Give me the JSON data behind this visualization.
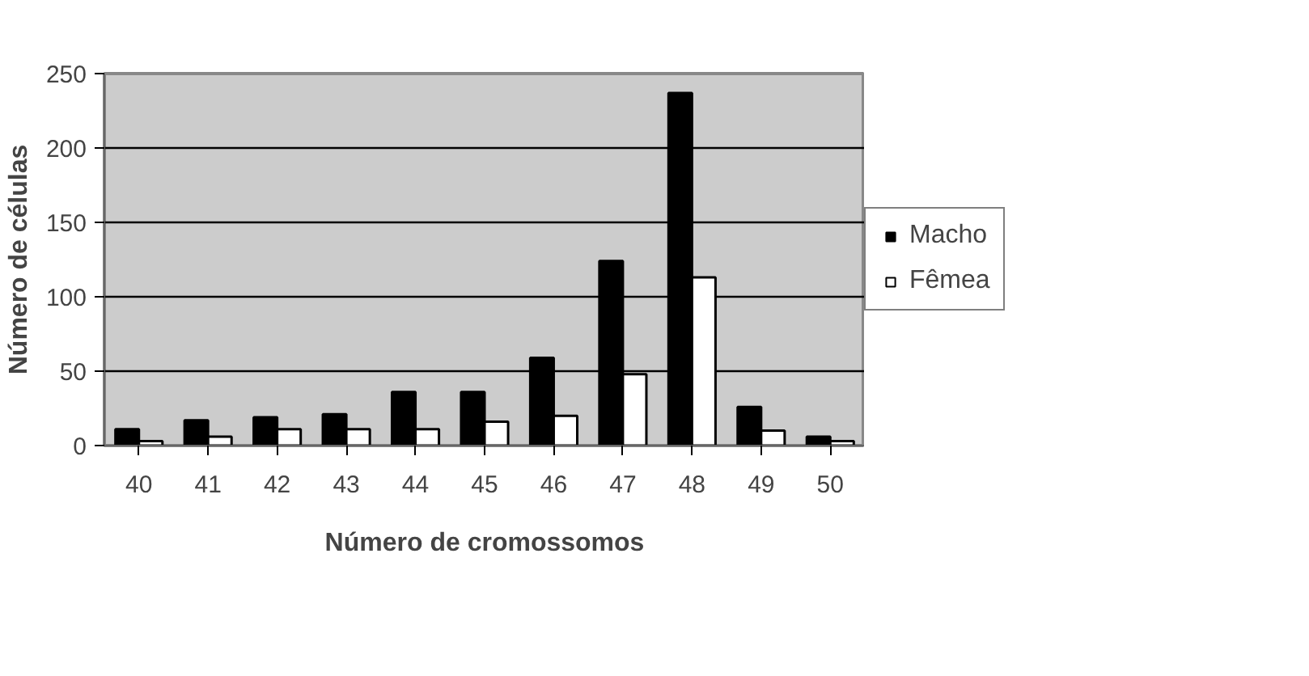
{
  "chart_data": {
    "type": "bar",
    "xlabel": "Número de cromossomos",
    "ylabel": "Número de células",
    "categories": [
      "40",
      "41",
      "42",
      "43",
      "44",
      "45",
      "46",
      "47",
      "48",
      "49",
      "50"
    ],
    "series": [
      {
        "name": "Macho",
        "color": "#000000",
        "values": [
          11,
          17,
          19,
          21,
          36,
          36,
          59,
          124,
          237,
          26,
          6
        ]
      },
      {
        "name": "Fêmea",
        "color": "#ffffff",
        "values": [
          3,
          6,
          11,
          11,
          11,
          16,
          20,
          48,
          113,
          10,
          3
        ]
      }
    ],
    "ylim": [
      0,
      250
    ],
    "yticks": [
      0,
      50,
      100,
      150,
      200,
      250
    ],
    "grid": "y",
    "legend": "right"
  }
}
